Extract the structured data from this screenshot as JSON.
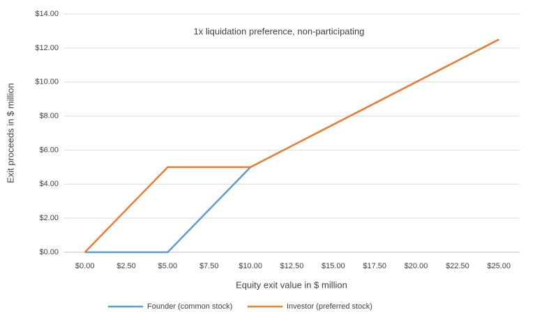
{
  "chart_data": {
    "type": "line",
    "annotation": "1x liquidation preference, non-participating",
    "x_label": "Equity exit value in $ million",
    "y_label": "Exit proceeds in $ million",
    "categories": [
      "$0.00",
      "$2.50",
      "$5.00",
      "$7.50",
      "$10.00",
      "$12.50",
      "$15.00",
      "$17.50",
      "$20.00",
      "$22.50",
      "$25.00"
    ],
    "series": [
      {
        "name": "Founder (common stock)",
        "color": "#5b9bd5",
        "values": [
          0,
          0,
          0,
          2.5,
          5,
          6.25,
          7.5,
          8.75,
          10,
          11.25,
          12.5
        ]
      },
      {
        "name": "Investor (preferred stock)",
        "color": "#ed7d31",
        "values": [
          0,
          2.5,
          5,
          5,
          5,
          6.25,
          7.5,
          8.75,
          10,
          11.25,
          12.5
        ]
      }
    ],
    "ylim": [
      0,
      14
    ],
    "yticks": [
      {
        "value": 0,
        "label": "$0.00"
      },
      {
        "value": 2,
        "label": "$2.00"
      },
      {
        "value": 4,
        "label": "$4.00"
      },
      {
        "value": 6,
        "label": "$6.00"
      },
      {
        "value": 8,
        "label": "$8.00"
      },
      {
        "value": 10,
        "label": "$10.00"
      },
      {
        "value": 12,
        "label": "$12.00"
      },
      {
        "value": 14,
        "label": "$14.00"
      }
    ],
    "grid": true,
    "legend": "bottom"
  }
}
